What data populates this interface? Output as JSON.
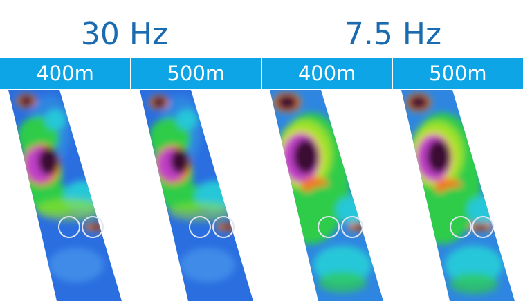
{
  "frequency_titles": [
    "30 Hz",
    "7.5 Hz"
  ],
  "depth_labels": [
    "400m",
    "500m",
    "400m",
    "500m"
  ],
  "colors": {
    "title_text": "#1a6bb0",
    "header_bar": "#0ea5e6",
    "header_text": "#ffffff",
    "colormap": [
      "#1f4fd8",
      "#2f86e0",
      "#25c7d8",
      "#2ecc4a",
      "#9be22a",
      "#f5e21a",
      "#f07a1a",
      "#d8182a",
      "#c040c8",
      "#3a1030"
    ]
  },
  "panels": [
    {
      "frequency": "30 Hz",
      "depth": "400m"
    },
    {
      "frequency": "30 Hz",
      "depth": "500m"
    },
    {
      "frequency": "7.5 Hz",
      "depth": "400m"
    },
    {
      "frequency": "7.5 Hz",
      "depth": "500m"
    }
  ]
}
